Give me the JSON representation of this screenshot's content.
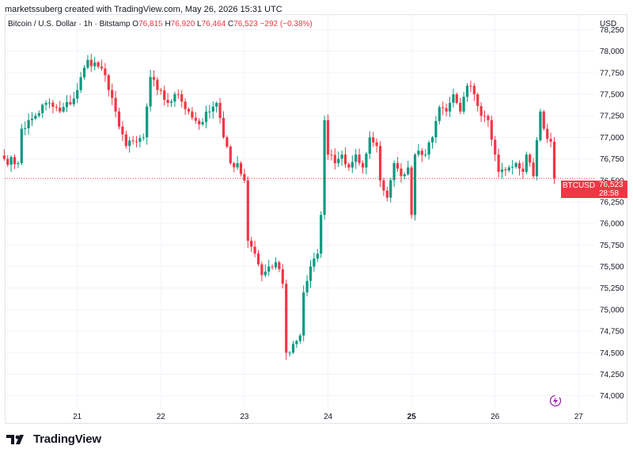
{
  "header": {
    "credit": "marketssuberg created with TradingView.com, May 26, 2026 15:31 UTC"
  },
  "symbol": {
    "name": "Bitcoin / U.S. Dollar · 1h · Bitstamp",
    "o_label": "O",
    "o_value": "76,815",
    "h_label": "H",
    "h_value": "76,920",
    "l_label": "L",
    "l_value": "76,464",
    "c_label": "C",
    "c_value": "76,523",
    "change": "−292 (−0.38%)"
  },
  "axis": {
    "currency": "USD"
  },
  "last_price": {
    "symbol": "BTCUSD",
    "price": "76,523",
    "countdown": "28:58"
  },
  "brand": {
    "name": "TradingView"
  },
  "colors": {
    "up": "#089981",
    "down": "#f23645",
    "grid": "#f0f3fa",
    "text": "#131722"
  },
  "icons": {
    "logo": "tradingview-logo-icon",
    "replay": "lightning-icon"
  },
  "chart_data": {
    "type": "candlestick",
    "y_ticks": [
      74000,
      74250,
      74500,
      74750,
      75000,
      75250,
      75500,
      75750,
      76000,
      76250,
      76500,
      76750,
      77000,
      77250,
      77500,
      77750,
      78000,
      78250
    ],
    "y_tick_labels": [
      "74,000",
      "74,250",
      "74,500",
      "74,750",
      "75,000",
      "75,250",
      "75,500",
      "75,750",
      "76,000",
      "76,250",
      "76,500",
      "76,750",
      "77,000",
      "77,250",
      "77,500",
      "77,750",
      "78,000",
      "78,250"
    ],
    "ylim": [
      73850,
      78420
    ],
    "x_ticks": [
      {
        "label": "21",
        "bold": false,
        "hour": 21
      },
      {
        "label": "22",
        "bold": false,
        "hour": 45
      },
      {
        "label": "23",
        "bold": false,
        "hour": 69
      },
      {
        "label": "24",
        "bold": false,
        "hour": 93
      },
      {
        "label": "25",
        "bold": true,
        "hour": 117
      },
      {
        "label": "26",
        "bold": false,
        "hour": 141
      },
      {
        "label": "27",
        "bold": false,
        "hour": 165
      }
    ],
    "last_close": 76523,
    "anchors": [
      [
        0,
        76750
      ],
      [
        4,
        76700
      ],
      [
        5,
        77100
      ],
      [
        9,
        77250
      ],
      [
        12,
        77400
      ],
      [
        16,
        77300
      ],
      [
        20,
        77450
      ],
      [
        24,
        77900
      ],
      [
        28,
        77800
      ],
      [
        30,
        77550
      ],
      [
        32,
        77300
      ],
      [
        35,
        76900
      ],
      [
        38,
        76950
      ],
      [
        40,
        77000
      ],
      [
        42,
        77700
      ],
      [
        44,
        77550
      ],
      [
        47,
        77400
      ],
      [
        50,
        77500
      ],
      [
        53,
        77300
      ],
      [
        56,
        77150
      ],
      [
        59,
        77300
      ],
      [
        61,
        77400
      ],
      [
        63,
        77000
      ],
      [
        65,
        76700
      ],
      [
        67,
        76700
      ],
      [
        69,
        76500
      ],
      [
        70,
        75800
      ],
      [
        72,
        75650
      ],
      [
        74,
        75400
      ],
      [
        76,
        75500
      ],
      [
        78,
        75550
      ],
      [
        80,
        75300
      ],
      [
        81,
        74500
      ],
      [
        83,
        74600
      ],
      [
        85,
        74700
      ],
      [
        86,
        75200
      ],
      [
        88,
        75500
      ],
      [
        90,
        75650
      ],
      [
        91,
        76100
      ],
      [
        92,
        77200
      ],
      [
        93,
        76800
      ],
      [
        95,
        76700
      ],
      [
        97,
        76800
      ],
      [
        99,
        76650
      ],
      [
        101,
        76800
      ],
      [
        103,
        76650
      ],
      [
        105,
        77000
      ],
      [
        107,
        76900
      ],
      [
        108,
        76500
      ],
      [
        110,
        76300
      ],
      [
        112,
        76700
      ],
      [
        114,
        76550
      ],
      [
        116,
        76650
      ],
      [
        117,
        76100
      ],
      [
        118,
        76800
      ],
      [
        121,
        76800
      ],
      [
        123,
        77000
      ],
      [
        125,
        77350
      ],
      [
        127,
        77300
      ],
      [
        129,
        77500
      ],
      [
        131,
        77300
      ],
      [
        133,
        77600
      ],
      [
        135,
        77500
      ],
      [
        137,
        77250
      ],
      [
        139,
        77200
      ],
      [
        141,
        76800
      ],
      [
        142,
        76600
      ],
      [
        145,
        76650
      ],
      [
        147,
        76700
      ],
      [
        149,
        76600
      ],
      [
        150,
        76800
      ],
      [
        152,
        76550
      ],
      [
        154,
        77300
      ],
      [
        155,
        77100
      ],
      [
        157,
        76950
      ],
      [
        158,
        76523
      ]
    ]
  }
}
